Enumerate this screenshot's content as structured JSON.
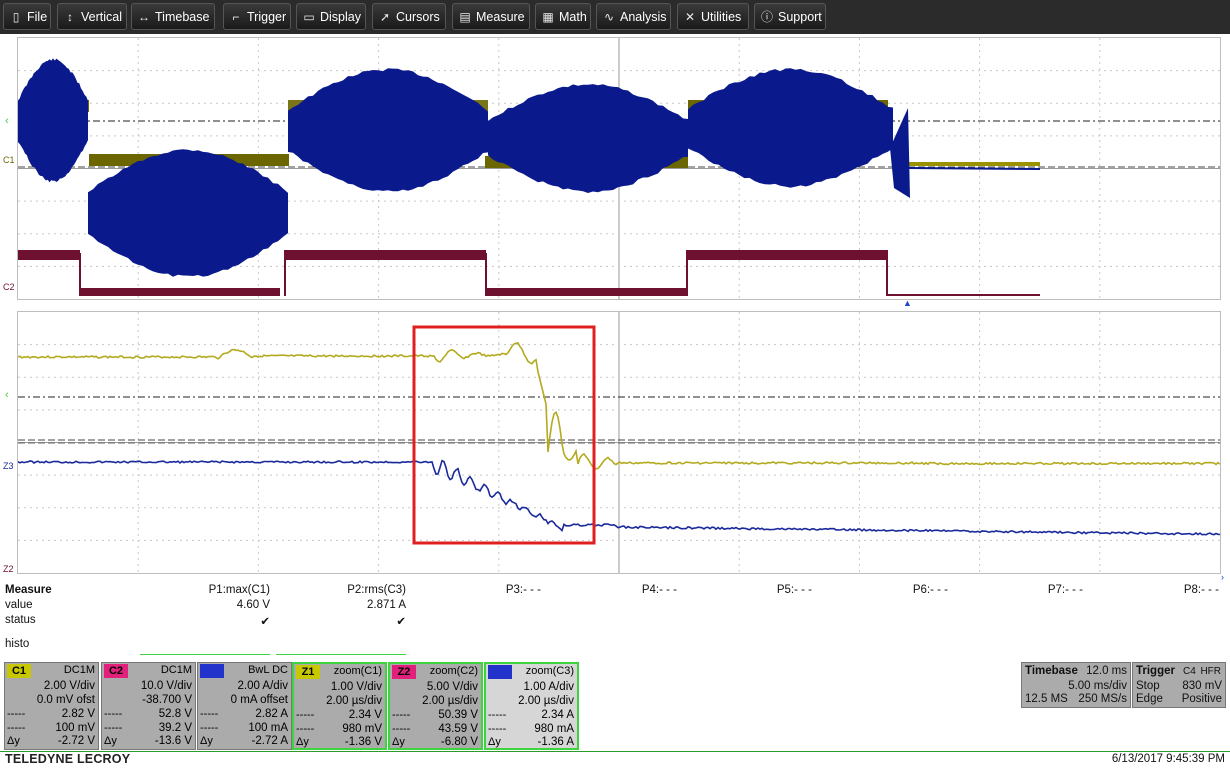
{
  "menu": {
    "items": [
      {
        "id": "file",
        "label": "File",
        "icon": "file-icon",
        "glyph": "▯"
      },
      {
        "id": "vertical",
        "label": "Vertical",
        "icon": "vertical-arrows-icon",
        "glyph": "↕"
      },
      {
        "id": "timebase",
        "label": "Timebase",
        "icon": "horizontal-arrows-icon",
        "glyph": "↔"
      },
      {
        "id": "trigger",
        "label": "Trigger",
        "icon": "trigger-icon",
        "glyph": "⌐"
      },
      {
        "id": "display",
        "label": "Display",
        "icon": "display-icon",
        "glyph": "▭"
      },
      {
        "id": "cursors",
        "label": "Cursors",
        "icon": "cursor-icon",
        "glyph": "➚"
      },
      {
        "id": "measure",
        "label": "Measure",
        "icon": "measure-icon",
        "glyph": "▤"
      },
      {
        "id": "math",
        "label": "Math",
        "icon": "math-icon",
        "glyph": "▦"
      },
      {
        "id": "analysis",
        "label": "Analysis",
        "icon": "analysis-icon",
        "glyph": "∿"
      },
      {
        "id": "utilities",
        "label": "Utilities",
        "icon": "utilities-icon",
        "glyph": "✕"
      },
      {
        "id": "support",
        "label": "Support",
        "icon": "info-icon",
        "glyph": "ⓘ"
      }
    ]
  },
  "grid_labels": {
    "c1": "C1",
    "c2": "C2",
    "z3": "Z3",
    "z2": "Z2"
  },
  "measure": {
    "title": "Measure",
    "row_value": "value",
    "row_status": "status",
    "row_histo": "histo",
    "params": [
      {
        "name": "P1:max(C1)",
        "value": "4.60 V",
        "status": "✔"
      },
      {
        "name": "P2:rms(C3)",
        "value": "2.871 A",
        "status": "✔"
      },
      {
        "name": "P3:- - -",
        "value": "",
        "status": ""
      },
      {
        "name": "P4:- - -",
        "value": "",
        "status": ""
      },
      {
        "name": "P5:- - -",
        "value": "",
        "status": ""
      },
      {
        "name": "P6:- - -",
        "value": "",
        "status": ""
      },
      {
        "name": "P7:- - -",
        "value": "",
        "status": ""
      },
      {
        "name": "P8:- - -",
        "value": "",
        "status": ""
      }
    ]
  },
  "channels": [
    {
      "tag": "C1",
      "tag_color": "#c8c800",
      "coupling": "DC1M",
      "l1": "2.00 V/div",
      "l2": "0.0 mV ofst",
      "l3": "2.82 V",
      "l4": "100 mV",
      "l5": "-2.72 V"
    },
    {
      "tag": "C2",
      "tag_color": "#e0207a",
      "coupling": "DC1M",
      "l1": "10.0 V/div",
      "l2": "-38.700 V",
      "l3": "52.8 V",
      "l4": "39.2 V",
      "l5": "-13.6 V"
    },
    {
      "tag": "C3",
      "tag_color": "#2233cc",
      "coupling": "BwL DC",
      "l1": "2.00 A/div",
      "l2": "0 mA offset",
      "l3": "2.82 A",
      "l4": "100 mA",
      "l5": "-2.72 A"
    },
    {
      "tag": "Z1",
      "tag_color": "#c8c800",
      "coupling": "zoom(C1)",
      "l1": "1.00 V/div",
      "l2": "2.00 µs/div",
      "l3": "2.34 V",
      "l4": "980 mV",
      "l5": "-1.36 V"
    },
    {
      "tag": "Z2",
      "tag_color": "#e0207a",
      "coupling": "zoom(C2)",
      "l1": "5.00 V/div",
      "l2": "2.00 µs/div",
      "l3": "50.39 V",
      "l4": "43.59 V",
      "l5": "-6.80 V"
    },
    {
      "tag": "Z3",
      "tag_color": "#2233cc",
      "coupling": "zoom(C3)",
      "l1": "1.00 A/div",
      "l2": "2.00 µs/div",
      "l3": "2.34 A",
      "l4": "980 mA",
      "l5": "-1.36 A"
    }
  ],
  "cursor_keys": {
    "k3": "-----",
    "k4": "-----",
    "k5": "Δy"
  },
  "timebase": {
    "label": "Timebase",
    "delay": "12.0 ms",
    "div": "5.00 ms/div",
    "samples": "12.5 MS",
    "rate": "250 MS/s"
  },
  "trigger": {
    "label": "Trigger",
    "src": "C4",
    "mode": "HFR",
    "state": "Stop",
    "level": "830 mV",
    "type": "Edge",
    "slope": "Positive"
  },
  "footer": {
    "brand": "TELEDYNE LECROY",
    "datetime": "6/13/2017 9:45:39 PM"
  },
  "colors": {
    "c1": "#6b6600",
    "c2": "#6e1030",
    "c3": "#0a1a8c",
    "zoom_yellow": "#b3aa20",
    "zoom_blue": "#1a2a9c",
    "highlight": "#e02020"
  }
}
